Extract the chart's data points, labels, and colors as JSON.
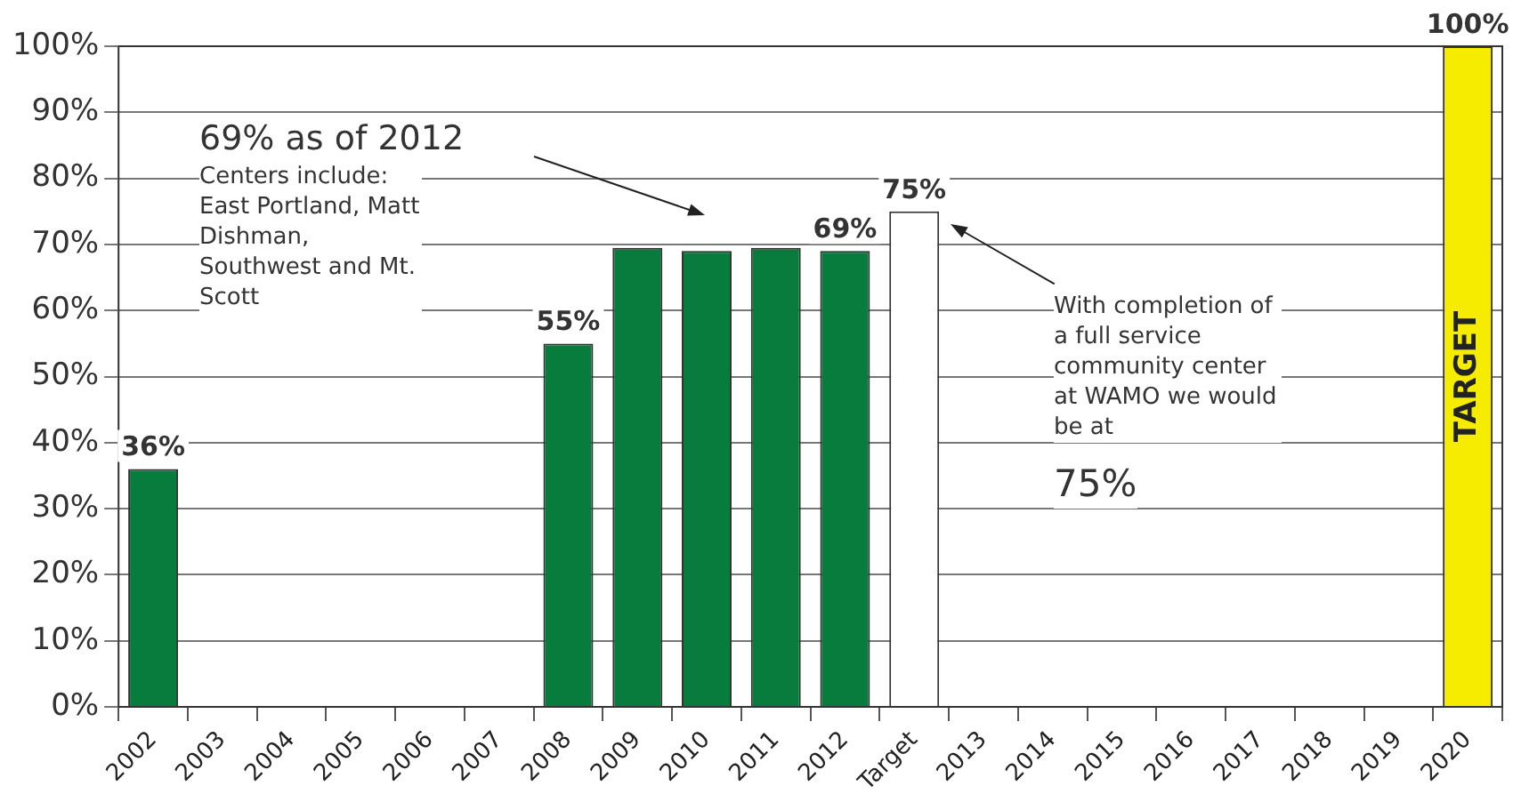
{
  "chart_data": {
    "type": "bar",
    "categories": [
      "2002",
      "2003",
      "2004",
      "2005",
      "2006",
      "2007",
      "2008",
      "2009",
      "2010",
      "2011",
      "2012",
      "Target",
      "2013",
      "2014",
      "2015",
      "2016",
      "2017",
      "2018",
      "2019",
      "2020"
    ],
    "values": [
      36,
      null,
      null,
      null,
      null,
      null,
      55,
      69.5,
      69,
      69.5,
      69,
      75,
      null,
      null,
      null,
      null,
      null,
      null,
      null,
      100
    ],
    "colors": [
      "#077c3c",
      "#077c3c",
      "#077c3c",
      "#077c3c",
      "#077c3c",
      "#077c3c",
      "#077c3c",
      "#077c3c",
      "#077c3c",
      "#077c3c",
      "#077c3c",
      "#ffffff",
      "#077c3c",
      "#077c3c",
      "#077c3c",
      "#077c3c",
      "#077c3c",
      "#077c3c",
      "#077c3c",
      "#f5ec00"
    ],
    "value_labels": [
      "36%",
      null,
      null,
      null,
      null,
      null,
      "55%",
      null,
      null,
      null,
      "69%",
      "75%",
      null,
      null,
      null,
      null,
      null,
      null,
      null,
      "100%"
    ],
    "ylim": [
      0,
      100
    ],
    "yticks": [
      {
        "value": 0,
        "label": "0%"
      },
      {
        "value": 10,
        "label": "10%"
      },
      {
        "value": 20,
        "label": "20%"
      },
      {
        "value": 30,
        "label": "30%"
      },
      {
        "value": 40,
        "label": "40%"
      },
      {
        "value": 50,
        "label": "50%"
      },
      {
        "value": 60,
        "label": "60%"
      },
      {
        "value": 70,
        "label": "70%"
      },
      {
        "value": 80,
        "label": "80%"
      },
      {
        "value": 90,
        "label": "90%"
      },
      {
        "value": 100,
        "label": "100%"
      }
    ],
    "grid": "y",
    "annotations": [
      "69% as of 2012",
      "Centers include: East Portland, Matt Dishman, Southwest and Mt. Scott",
      "With completion of a full service community center at WAMO we would be at",
      "75%",
      "TARGET"
    ]
  }
}
